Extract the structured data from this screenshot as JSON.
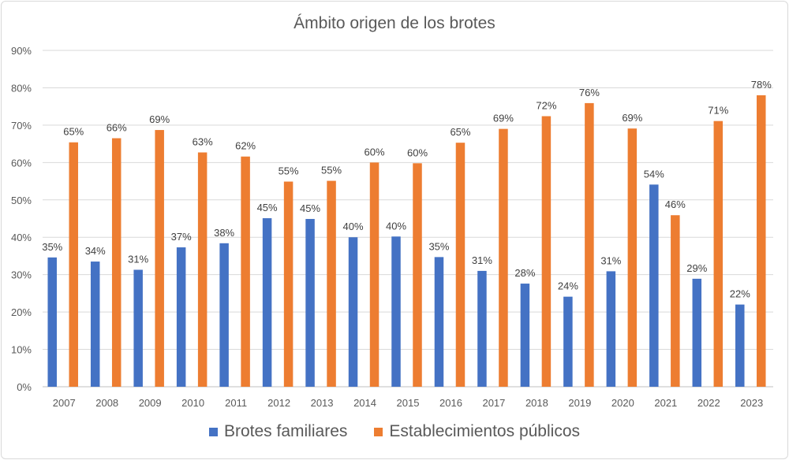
{
  "chart_data": {
    "type": "bar",
    "title": "Ámbito origen de los brotes",
    "xlabel": "",
    "ylabel": "",
    "ylim": [
      0,
      90
    ],
    "yticks": [
      0,
      10,
      20,
      30,
      40,
      50,
      60,
      70,
      80,
      90
    ],
    "ytick_labels": [
      "0%",
      "10%",
      "20%",
      "30%",
      "40%",
      "50%",
      "60%",
      "70%",
      "80%",
      "90%"
    ],
    "grid": true,
    "legend": "bottom",
    "categories": [
      "2007",
      "2008",
      "2009",
      "2010",
      "2011",
      "2012",
      "2013",
      "2014",
      "2015",
      "2016",
      "2017",
      "2018",
      "2019",
      "2020",
      "2021",
      "2022",
      "2023"
    ],
    "series": [
      {
        "name": "Brotes familiares",
        "color": "#4472C4",
        "values": [
          34.6,
          33.5,
          31.3,
          37.3,
          38.4,
          45.1,
          44.9,
          40.0,
          40.2,
          34.7,
          31.0,
          27.6,
          24.1,
          30.9,
          54.1,
          28.9,
          22.0
        ],
        "labels": [
          "35%",
          "34%",
          "31%",
          "37%",
          "38%",
          "45%",
          "45%",
          "40%",
          "40%",
          "35%",
          "31%",
          "28%",
          "24%",
          "31%",
          "54%",
          "29%",
          "22%"
        ]
      },
      {
        "name": "Establecimientos públicos",
        "color": "#ED7D31",
        "values": [
          65.4,
          66.5,
          68.7,
          62.7,
          61.6,
          54.9,
          55.1,
          60.0,
          59.8,
          65.3,
          69.0,
          72.4,
          75.9,
          69.1,
          45.9,
          71.1,
          78.0
        ],
        "labels": [
          "65%",
          "66%",
          "69%",
          "63%",
          "62%",
          "55%",
          "55%",
          "60%",
          "60%",
          "65%",
          "69%",
          "72%",
          "76%",
          "69%",
          "46%",
          "71%",
          "78%"
        ]
      }
    ]
  }
}
